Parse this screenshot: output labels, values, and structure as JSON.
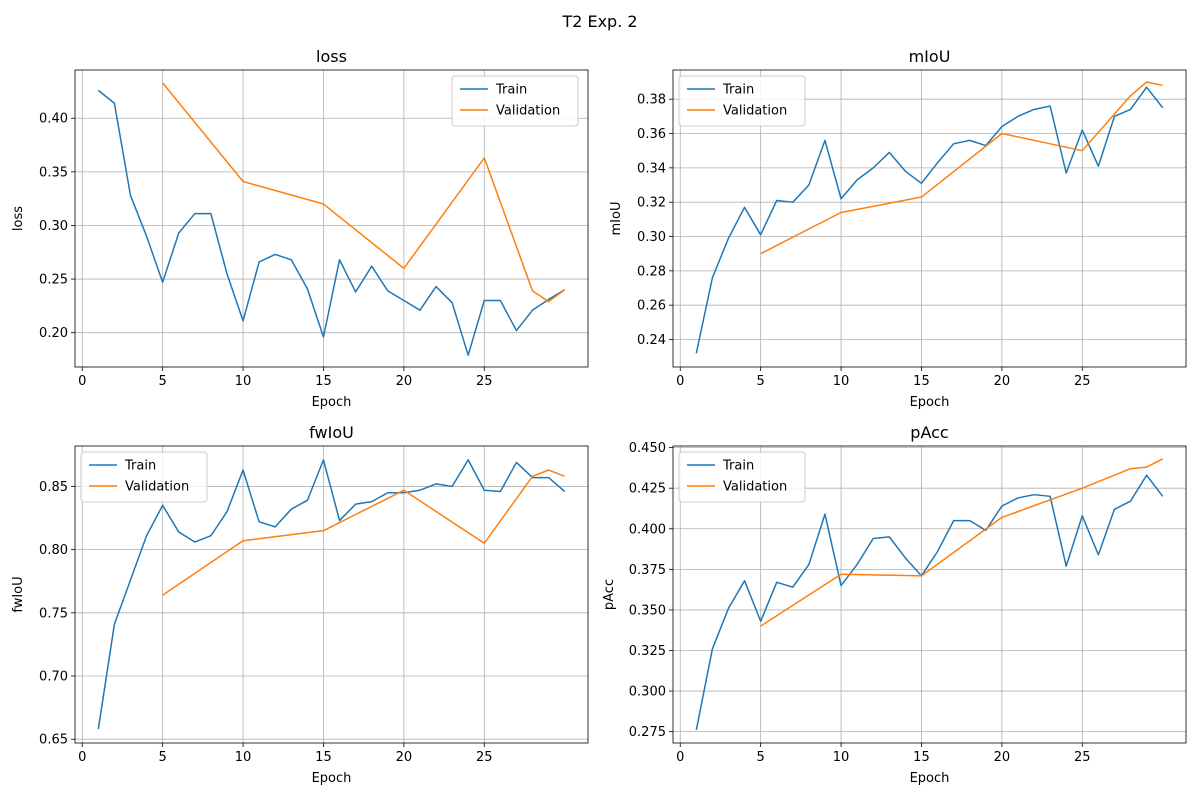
{
  "figure": {
    "title": "T2 Exp. 2"
  },
  "colors": {
    "train": "#1f77b4",
    "validation": "#ff7f0e",
    "grid": "#b0b0b0"
  },
  "chart_data": [
    {
      "type": "line",
      "title": "loss",
      "xlabel": "Epoch",
      "ylabel": "loss",
      "xlim": [
        -0.45,
        31.45
      ],
      "ylim": [
        0.168,
        0.445
      ],
      "xticks": [
        0,
        5,
        10,
        15,
        20,
        25
      ],
      "yticks": [
        0.2,
        0.25,
        0.3,
        0.35,
        0.4
      ],
      "ytick_labels": [
        "0.20",
        "0.25",
        "0.30",
        "0.35",
        "0.40"
      ],
      "grid": true,
      "legend": {
        "placement": "top-right",
        "entries": [
          "Train",
          "Validation"
        ]
      },
      "series": [
        {
          "name": "Train",
          "color": "#1f77b4",
          "x": [
            1,
            2,
            3,
            4,
            5,
            6,
            7,
            8,
            9,
            10,
            11,
            12,
            13,
            14,
            15,
            16,
            17,
            18,
            19,
            20,
            21,
            22,
            23,
            24,
            25,
            26,
            27,
            28,
            29,
            30
          ],
          "y": [
            0.426,
            0.414,
            0.328,
            0.29,
            0.247,
            0.293,
            0.311,
            0.311,
            0.255,
            0.211,
            0.266,
            0.273,
            0.268,
            0.241,
            0.196,
            0.268,
            0.238,
            0.262,
            0.239,
            0.23,
            0.221,
            0.243,
            0.228,
            0.179,
            0.23,
            0.23,
            0.202,
            0.221,
            0.231,
            0.24
          ]
        },
        {
          "name": "Validation",
          "color": "#ff7f0e",
          "x": [
            5,
            10,
            15,
            20,
            25,
            28,
            29,
            30
          ],
          "y": [
            0.433,
            0.341,
            0.32,
            0.26,
            0.363,
            0.239,
            0.229,
            0.24
          ]
        }
      ]
    },
    {
      "type": "line",
      "title": "mIoU",
      "xlabel": "Epoch",
      "ylabel": "mIoU",
      "xlim": [
        -0.45,
        31.45
      ],
      "ylim": [
        0.224,
        0.397
      ],
      "xticks": [
        0,
        5,
        10,
        15,
        20,
        25
      ],
      "yticks": [
        0.24,
        0.26,
        0.28,
        0.3,
        0.32,
        0.34,
        0.36,
        0.38
      ],
      "ytick_labels": [
        "0.24",
        "0.26",
        "0.28",
        "0.30",
        "0.32",
        "0.34",
        "0.36",
        "0.38"
      ],
      "grid": true,
      "legend": {
        "placement": "top-left",
        "entries": [
          "Train",
          "Validation"
        ]
      },
      "series": [
        {
          "name": "Train",
          "color": "#1f77b4",
          "x": [
            1,
            2,
            3,
            4,
            5,
            6,
            7,
            8,
            9,
            10,
            11,
            12,
            13,
            14,
            15,
            16,
            17,
            18,
            19,
            20,
            21,
            22,
            23,
            24,
            25,
            26,
            27,
            28,
            29,
            30
          ],
          "y": [
            0.232,
            0.276,
            0.299,
            0.317,
            0.301,
            0.321,
            0.32,
            0.33,
            0.356,
            0.322,
            0.333,
            0.34,
            0.349,
            0.338,
            0.331,
            0.343,
            0.354,
            0.356,
            0.353,
            0.364,
            0.37,
            0.374,
            0.376,
            0.337,
            0.362,
            0.341,
            0.37,
            0.374,
            0.387,
            0.375
          ]
        },
        {
          "name": "Validation",
          "color": "#ff7f0e",
          "x": [
            5,
            10,
            15,
            20,
            25,
            28,
            29,
            30
          ],
          "y": [
            0.29,
            0.314,
            0.323,
            0.36,
            0.35,
            0.382,
            0.39,
            0.388
          ]
        }
      ]
    },
    {
      "type": "line",
      "title": "fwIoU",
      "xlabel": "Epoch",
      "ylabel": "fwIoU",
      "xlim": [
        -0.45,
        31.45
      ],
      "ylim": [
        0.647,
        0.882
      ],
      "xticks": [
        0,
        5,
        10,
        15,
        20,
        25
      ],
      "yticks": [
        0.65,
        0.7,
        0.75,
        0.8,
        0.85
      ],
      "ytick_labels": [
        "0.65",
        "0.70",
        "0.75",
        "0.80",
        "0.85"
      ],
      "grid": true,
      "legend": {
        "placement": "top-left",
        "entries": [
          "Train",
          "Validation"
        ]
      },
      "series": [
        {
          "name": "Train",
          "color": "#1f77b4",
          "x": [
            1,
            2,
            3,
            4,
            5,
            6,
            7,
            8,
            9,
            10,
            11,
            12,
            13,
            14,
            15,
            16,
            17,
            18,
            19,
            20,
            21,
            22,
            23,
            24,
            25,
            26,
            27,
            28,
            29,
            30
          ],
          "y": [
            0.658,
            0.741,
            0.776,
            0.811,
            0.835,
            0.814,
            0.806,
            0.811,
            0.83,
            0.863,
            0.822,
            0.818,
            0.832,
            0.839,
            0.871,
            0.823,
            0.836,
            0.838,
            0.845,
            0.845,
            0.847,
            0.852,
            0.85,
            0.871,
            0.847,
            0.846,
            0.869,
            0.857,
            0.857,
            0.846
          ]
        },
        {
          "name": "Validation",
          "color": "#ff7f0e",
          "x": [
            5,
            10,
            15,
            20,
            25,
            28,
            29,
            30
          ],
          "y": [
            0.764,
            0.807,
            0.815,
            0.847,
            0.805,
            0.858,
            0.863,
            0.858
          ]
        }
      ]
    },
    {
      "type": "line",
      "title": "pAcc",
      "xlabel": "Epoch",
      "ylabel": "pAcc",
      "xlim": [
        -0.45,
        31.45
      ],
      "ylim": [
        0.268,
        0.451
      ],
      "xticks": [
        0,
        5,
        10,
        15,
        20,
        25
      ],
      "yticks": [
        0.275,
        0.3,
        0.325,
        0.35,
        0.375,
        0.4,
        0.425,
        0.45
      ],
      "ytick_labels": [
        "0.275",
        "0.300",
        "0.325",
        "0.350",
        "0.375",
        "0.400",
        "0.425",
        "0.450"
      ],
      "grid": true,
      "legend": {
        "placement": "top-left",
        "entries": [
          "Train",
          "Validation"
        ]
      },
      "series": [
        {
          "name": "Train",
          "color": "#1f77b4",
          "x": [
            1,
            2,
            3,
            4,
            5,
            6,
            7,
            8,
            9,
            10,
            11,
            12,
            13,
            14,
            15,
            16,
            17,
            18,
            19,
            20,
            21,
            22,
            23,
            24,
            25,
            26,
            27,
            28,
            29,
            30
          ],
          "y": [
            0.276,
            0.326,
            0.351,
            0.368,
            0.343,
            0.367,
            0.364,
            0.378,
            0.409,
            0.365,
            0.378,
            0.394,
            0.395,
            0.382,
            0.371,
            0.386,
            0.405,
            0.405,
            0.399,
            0.414,
            0.419,
            0.421,
            0.42,
            0.377,
            0.408,
            0.384,
            0.412,
            0.417,
            0.433,
            0.42
          ]
        },
        {
          "name": "Validation",
          "color": "#ff7f0e",
          "x": [
            5,
            10,
            15,
            20,
            25,
            28,
            29,
            30
          ],
          "y": [
            0.34,
            0.372,
            0.371,
            0.407,
            0.425,
            0.437,
            0.438,
            0.443
          ]
        }
      ]
    }
  ]
}
